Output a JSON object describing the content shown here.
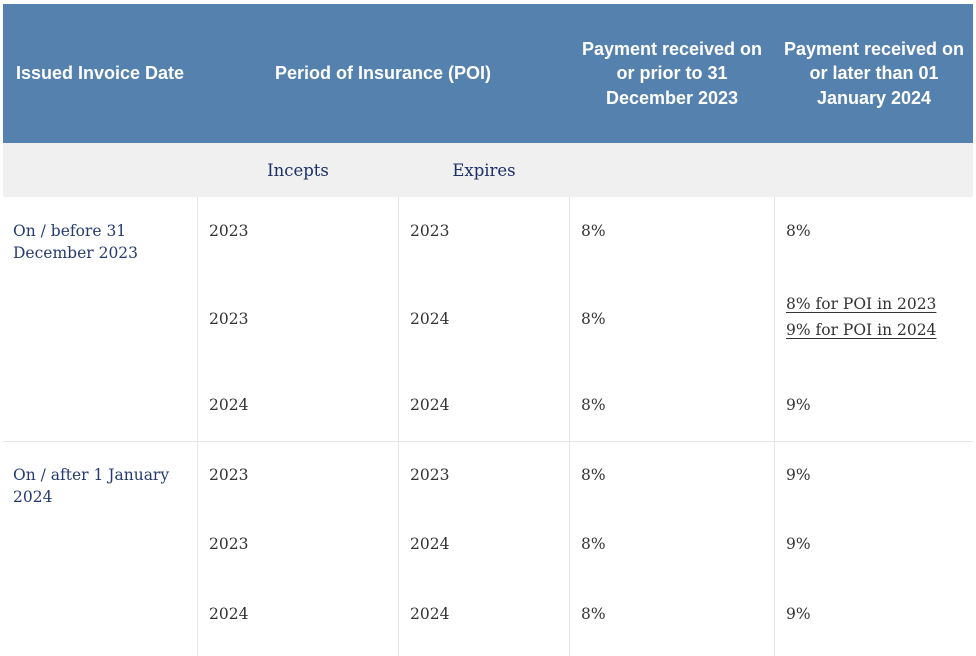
{
  "header": {
    "issued_invoice_date": "Issued Invoice Date",
    "period_of_insurance": "Period of Insurance (POI)",
    "payment_prior": "Payment received on or prior to 31 December 2023",
    "payment_later": "Payment received on or later than 01 January 2024"
  },
  "subheader": {
    "incepts": "Incepts",
    "expires": "Expires"
  },
  "groups": [
    {
      "label": "On / before 31 December 2023",
      "rows": [
        {
          "incepts": "2023",
          "expires": "2023",
          "prior": "8%",
          "later": "8%"
        },
        {
          "incepts": "2023",
          "expires": "2024",
          "prior": "8%",
          "later_links": [
            "8% for POI in 2023",
            "9% for POI in 2024"
          ]
        },
        {
          "incepts": "2024",
          "expires": "2024",
          "prior": "8%",
          "later": "9%"
        }
      ]
    },
    {
      "label": "On / after 1 January 2024",
      "rows": [
        {
          "incepts": "2023",
          "expires": "2023",
          "prior": "8%",
          "later": "9%"
        },
        {
          "incepts": "2023",
          "expires": "2024",
          "prior": "8%",
          "later": "9%"
        },
        {
          "incepts": "2024",
          "expires": "2024",
          "prior": "8%",
          "later": "9%"
        }
      ]
    }
  ]
}
